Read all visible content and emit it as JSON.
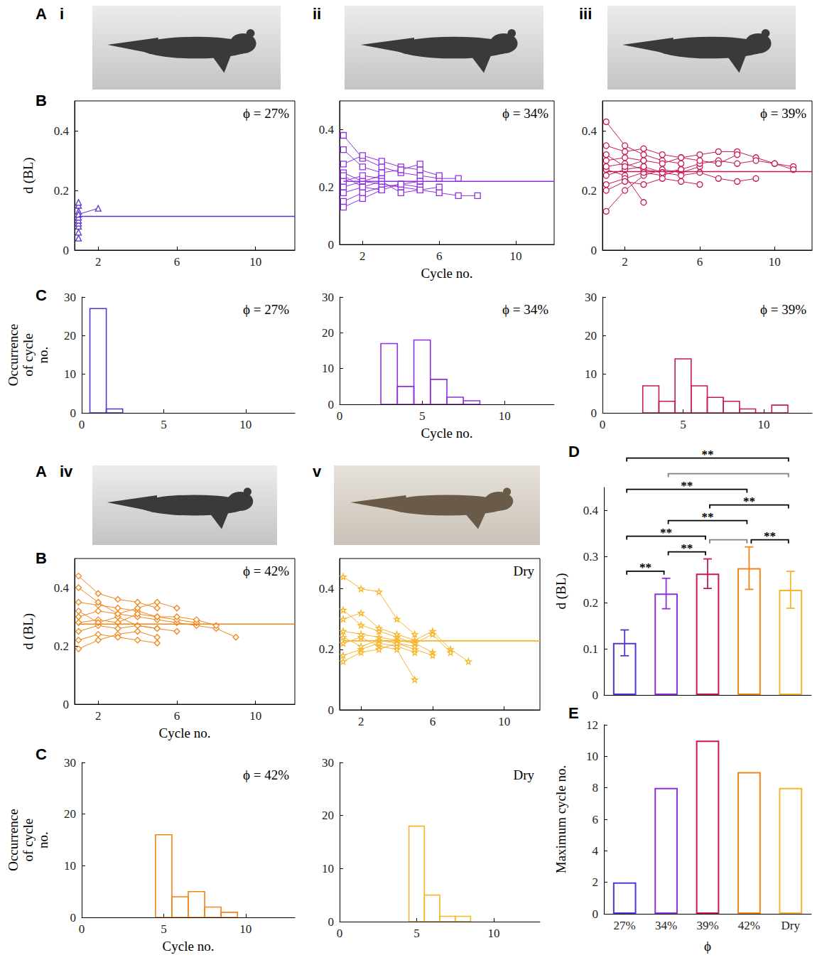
{
  "photos": [
    {
      "panel": "A",
      "label": "i"
    },
    {
      "label": "ii"
    },
    {
      "label": "iii"
    },
    {
      "panel": "A",
      "label": "iv"
    },
    {
      "label": "v"
    }
  ],
  "chart_data": [
    {
      "panel": "B",
      "type": "line",
      "annotation": "ϕ = 27%",
      "y_label": "d (BL)",
      "color": "#5a32d2",
      "marker": "triangle",
      "xlim": [
        0.8,
        12
      ],
      "xticks": [
        2,
        6,
        10
      ],
      "ylim": [
        0,
        0.5
      ],
      "yticks": [
        0,
        0.2,
        0.4
      ],
      "mean": 0.113,
      "series": [
        {
          "x": [
            1
          ],
          "values": [
            0.04
          ]
        },
        {
          "x": [
            1
          ],
          "values": [
            0.06
          ]
        },
        {
          "x": [
            1
          ],
          "values": [
            0.08
          ]
        },
        {
          "x": [
            1
          ],
          "values": [
            0.09
          ]
        },
        {
          "x": [
            1
          ],
          "values": [
            0.1
          ]
        },
        {
          "x": [
            1
          ],
          "values": [
            0.11
          ]
        },
        {
          "x": [
            1
          ],
          "values": [
            0.13
          ]
        },
        {
          "x": [
            1
          ],
          "values": [
            0.15
          ]
        },
        {
          "x": [
            1
          ],
          "values": [
            0.16
          ]
        },
        {
          "x": [
            1,
            2
          ],
          "values": [
            0.12,
            0.14
          ]
        }
      ]
    },
    {
      "type": "line",
      "annotation": "ϕ = 34%",
      "x_label": "Cycle no.",
      "color": "#9030e0",
      "marker": "square",
      "xlim": [
        0.8,
        12
      ],
      "xticks": [
        2,
        6,
        10
      ],
      "ylim": [
        0,
        0.5
      ],
      "yticks": [
        0,
        0.2,
        0.4
      ],
      "mean": 0.22,
      "series": [
        {
          "x": [
            1,
            2,
            3,
            4,
            5,
            6,
            7
          ],
          "values": [
            0.38,
            0.3,
            0.27,
            0.25,
            0.24,
            0.23,
            0.23
          ]
        },
        {
          "x": [
            1,
            2,
            3,
            4,
            5,
            6,
            7,
            8
          ],
          "values": [
            0.25,
            0.22,
            0.21,
            0.2,
            0.19,
            0.18,
            0.17,
            0.17
          ]
        },
        {
          "x": [
            1,
            2,
            3
          ],
          "values": [
            0.2,
            0.22,
            0.24
          ]
        },
        {
          "x": [
            1,
            2,
            3,
            4,
            5
          ],
          "values": [
            0.15,
            0.18,
            0.2,
            0.21,
            0.22
          ]
        },
        {
          "x": [
            1,
            2,
            3,
            4,
            5,
            6
          ],
          "values": [
            0.28,
            0.31,
            0.29,
            0.27,
            0.26,
            0.24
          ]
        },
        {
          "x": [
            1,
            2,
            3
          ],
          "values": [
            0.22,
            0.24,
            0.23
          ]
        },
        {
          "x": [
            1,
            2,
            3,
            4,
            5
          ],
          "values": [
            0.18,
            0.2,
            0.19,
            0.21,
            0.2
          ]
        },
        {
          "x": [
            1,
            2,
            3,
            4,
            5
          ],
          "values": [
            0.33,
            0.27,
            0.25,
            0.26,
            0.28
          ]
        },
        {
          "x": [
            1,
            2,
            3
          ],
          "values": [
            0.13,
            0.16,
            0.19
          ]
        },
        {
          "x": [
            1,
            2,
            3,
            4,
            5,
            6
          ],
          "values": [
            0.24,
            0.2,
            0.22,
            0.18,
            0.19,
            0.2
          ]
        }
      ]
    },
    {
      "type": "line",
      "annotation": "ϕ = 39%",
      "color": "#c8185a",
      "marker": "circle",
      "xlim": [
        0.8,
        12
      ],
      "xticks": [
        2,
        6,
        10
      ],
      "ylim": [
        0,
        0.5
      ],
      "yticks": [
        0,
        0.2,
        0.4
      ],
      "mean": 0.263,
      "series": [
        {
          "x": [
            1,
            2,
            3,
            4,
            5
          ],
          "values": [
            0.43,
            0.35,
            0.32,
            0.3,
            0.29
          ]
        },
        {
          "x": [
            1,
            2,
            3,
            4,
            5,
            6
          ],
          "values": [
            0.13,
            0.2,
            0.25,
            0.27,
            0.26,
            0.28
          ]
        },
        {
          "x": [
            1,
            2,
            3,
            4,
            5,
            6,
            7,
            8,
            9,
            10,
            11
          ],
          "values": [
            0.3,
            0.31,
            0.3,
            0.29,
            0.31,
            0.32,
            0.33,
            0.33,
            0.31,
            0.29,
            0.28
          ]
        },
        {
          "x": [
            1,
            2,
            3
          ],
          "values": [
            0.27,
            0.25,
            0.16
          ]
        },
        {
          "x": [
            1,
            2,
            3,
            4,
            5,
            6,
            7,
            8,
            9
          ],
          "values": [
            0.28,
            0.29,
            0.27,
            0.26,
            0.25,
            0.26,
            0.24,
            0.23,
            0.24
          ]
        },
        {
          "x": [
            1,
            2,
            3,
            4,
            5,
            6,
            7,
            8,
            9,
            10,
            11
          ],
          "values": [
            0.22,
            0.24,
            0.26,
            0.25,
            0.27,
            0.29,
            0.3,
            0.29,
            0.3,
            0.29,
            0.27
          ]
        },
        {
          "x": [
            1,
            2,
            3,
            4,
            5,
            6,
            7,
            8
          ],
          "values": [
            0.35,
            0.33,
            0.34,
            0.32,
            0.31,
            0.3,
            0.29,
            0.32
          ]
        },
        {
          "x": [
            1,
            2,
            3,
            4,
            5
          ],
          "values": [
            0.25,
            0.27,
            0.28,
            0.26,
            0.27
          ]
        },
        {
          "x": [
            1,
            2,
            3
          ],
          "values": [
            0.32,
            0.28,
            0.3
          ]
        },
        {
          "x": [
            1,
            2,
            3,
            4,
            5,
            6
          ],
          "values": [
            0.2,
            0.23,
            0.22,
            0.24,
            0.23,
            0.22
          ]
        }
      ]
    },
    {
      "panel": "C",
      "type": "histogram",
      "annotation": "ϕ = 27%",
      "y_label": "Occurrence of cycle no.",
      "color": "#5a32d2",
      "bins": [
        0.5,
        1.5,
        2.5
      ],
      "values": [
        27,
        1
      ],
      "xlim": [
        0,
        13
      ],
      "xticks": [
        0,
        5,
        10
      ],
      "ylim": [
        0,
        30
      ],
      "yticks": [
        0,
        10,
        20,
        30
      ]
    },
    {
      "type": "histogram",
      "annotation": "ϕ = 34%",
      "x_label": "Cycle no.",
      "color": "#9030e0",
      "bins": [
        2.5,
        3.5,
        4.5,
        5.5,
        6.5,
        7.5,
        8.5
      ],
      "values": [
        17,
        5,
        18,
        7,
        2,
        1
      ],
      "xlim": [
        0,
        13
      ],
      "xticks": [
        0,
        5,
        10
      ],
      "ylim": [
        0,
        30
      ],
      "yticks": [
        0,
        10,
        20,
        30
      ]
    },
    {
      "type": "histogram",
      "annotation": "ϕ = 39%",
      "color": "#c8185a",
      "bins": [
        2.5,
        3.5,
        4.5,
        5.5,
        6.5,
        7.5,
        8.5,
        9.5,
        10.5,
        11.5
      ],
      "values": [
        7,
        3,
        14,
        7,
        4,
        3,
        1,
        0,
        2
      ],
      "xlim": [
        0,
        13
      ],
      "xticks": [
        0,
        5,
        10
      ],
      "ylim": [
        0,
        30
      ],
      "yticks": [
        0,
        10,
        20,
        30
      ]
    },
    {
      "panel": "B",
      "type": "line",
      "annotation": "ϕ = 42%",
      "y_label": "d (BL)",
      "x_label": "Cycle no.",
      "color": "#f08518",
      "marker": "diamond",
      "xlim": [
        0.8,
        12
      ],
      "xticks": [
        2,
        6,
        10
      ],
      "ylim": [
        0,
        0.5
      ],
      "yticks": [
        0,
        0.2,
        0.4
      ],
      "mean": 0.275,
      "series": [
        {
          "x": [
            1,
            2,
            3,
            4,
            5
          ],
          "values": [
            0.44,
            0.38,
            0.36,
            0.35,
            0.33
          ]
        },
        {
          "x": [
            1,
            2,
            3,
            4,
            5
          ],
          "values": [
            0.19,
            0.22,
            0.24,
            0.25,
            0.23
          ]
        },
        {
          "x": [
            1,
            2,
            3,
            4,
            5,
            6,
            7,
            8,
            9
          ],
          "values": [
            0.3,
            0.32,
            0.31,
            0.3,
            0.29,
            0.28,
            0.27,
            0.26,
            0.23
          ]
        },
        {
          "x": [
            1,
            2,
            3,
            4,
            5,
            6,
            7
          ],
          "values": [
            0.35,
            0.34,
            0.33,
            0.32,
            0.3,
            0.29,
            0.28
          ]
        },
        {
          "x": [
            1,
            2,
            3,
            4,
            5,
            6
          ],
          "values": [
            0.25,
            0.27,
            0.26,
            0.27,
            0.26,
            0.25
          ]
        },
        {
          "x": [
            1,
            2,
            3,
            4,
            5,
            6,
            7,
            8
          ],
          "values": [
            0.28,
            0.29,
            0.28,
            0.31,
            0.3,
            0.3,
            0.29,
            0.27
          ]
        },
        {
          "x": [
            1,
            2,
            3,
            4,
            5
          ],
          "values": [
            0.22,
            0.24,
            0.23,
            0.22,
            0.21
          ]
        },
        {
          "x": [
            1,
            2,
            3,
            4,
            5
          ],
          "values": [
            0.32,
            0.28,
            0.3,
            0.27,
            0.26
          ]
        },
        {
          "x": [
            1,
            2,
            3,
            4,
            5,
            6
          ],
          "values": [
            0.4,
            0.35,
            0.31,
            0.33,
            0.35,
            0.33
          ]
        }
      ]
    },
    {
      "type": "line",
      "annotation": "Dry",
      "color": "#f6b52a",
      "marker": "star",
      "xlim": [
        0.8,
        12
      ],
      "xticks": [
        2,
        6,
        10
      ],
      "ylim": [
        0,
        0.5
      ],
      "yticks": [
        0,
        0.2,
        0.4
      ],
      "mean": 0.228,
      "series": [
        {
          "x": [
            1,
            2,
            3,
            4,
            5
          ],
          "values": [
            0.44,
            0.4,
            0.39,
            0.3,
            0.25
          ]
        },
        {
          "x": [
            1,
            2,
            3,
            4,
            5,
            6
          ],
          "values": [
            0.33,
            0.28,
            0.26,
            0.24,
            0.22,
            0.19
          ]
        },
        {
          "x": [
            1,
            2,
            3,
            4,
            5,
            6,
            7,
            8
          ],
          "values": [
            0.3,
            0.32,
            0.27,
            0.25,
            0.23,
            0.26,
            0.2,
            0.16
          ]
        },
        {
          "x": [
            1,
            2,
            3,
            4,
            5
          ],
          "values": [
            0.22,
            0.24,
            0.21,
            0.2,
            0.1
          ]
        },
        {
          "x": [
            1,
            2,
            3,
            4,
            5
          ],
          "values": [
            0.18,
            0.2,
            0.22,
            0.21,
            0.19
          ]
        },
        {
          "x": [
            1,
            2,
            3,
            4,
            5,
            6,
            7
          ],
          "values": [
            0.26,
            0.25,
            0.24,
            0.23,
            0.22,
            0.25,
            0.19
          ]
        },
        {
          "x": [
            1,
            2,
            3,
            4,
            5,
            6
          ],
          "values": [
            0.24,
            0.21,
            0.23,
            0.22,
            0.2,
            0.18
          ]
        },
        {
          "x": [
            1,
            2,
            3,
            4,
            5
          ],
          "values": [
            0.16,
            0.19,
            0.2,
            0.22,
            0.21
          ]
        }
      ]
    },
    {
      "panel": "C",
      "type": "histogram",
      "annotation": "ϕ = 42%",
      "y_label": "Occurrence of cycle no.",
      "x_label": "Cycle no.",
      "color": "#f08518",
      "bins": [
        4.5,
        5.5,
        6.5,
        7.5,
        8.5,
        9.5
      ],
      "values": [
        16,
        4,
        5,
        2,
        1
      ],
      "xlim": [
        0,
        13
      ],
      "xticks": [
        0,
        5,
        10
      ],
      "ylim": [
        0,
        30
      ],
      "yticks": [
        0,
        10,
        20,
        30
      ]
    },
    {
      "type": "histogram",
      "annotation": "Dry",
      "color": "#f6b52a",
      "bins": [
        4.5,
        5.5,
        6.5,
        7.5,
        8.5
      ],
      "values": [
        18,
        5,
        1,
        1
      ],
      "xlim": [
        0,
        13
      ],
      "xticks": [
        0,
        5,
        10
      ],
      "ylim": [
        0,
        30
      ],
      "yticks": [
        0,
        10,
        20,
        30
      ]
    },
    {
      "panel": "D",
      "type": "bar",
      "y_label": "d (BL)",
      "tick_labels": "y",
      "categories": [
        "27%",
        "34%",
        "39%",
        "42%",
        "Dry"
      ],
      "values": [
        0.113,
        0.22,
        0.263,
        0.275,
        0.228
      ],
      "errors": [
        0.028,
        0.033,
        0.032,
        0.046,
        0.04
      ],
      "colors": [
        "#5a32d2",
        "#9030e0",
        "#c8185a",
        "#f08518",
        "#f6b52a"
      ],
      "ylim": [
        0,
        0.45
      ],
      "yticks": [
        0,
        0.1,
        0.2,
        0.3,
        0.4
      ],
      "comparisons": [
        {
          "pair": [
            "27%",
            "34%"
          ],
          "label": "**",
          "color": "#000000"
        },
        {
          "pair": [
            "34%",
            "39%"
          ],
          "label": "**",
          "color": "#000000"
        },
        {
          "pair": [
            "39%",
            "42%"
          ],
          "color": "#808080"
        },
        {
          "pair": [
            "42%",
            "Dry"
          ],
          "label": "**",
          "color": "#000000"
        },
        {
          "pair": [
            "27%",
            "39%"
          ],
          "label": "**",
          "color": "#000000"
        },
        {
          "pair": [
            "34%",
            "42%"
          ],
          "label": "**",
          "color": "#000000"
        },
        {
          "pair": [
            "39%",
            "Dry"
          ],
          "label": "**",
          "color": "#000000"
        },
        {
          "pair": [
            "27%",
            "42%"
          ],
          "label": "**",
          "color": "#000000"
        },
        {
          "pair": [
            "34%",
            "Dry"
          ],
          "color": "#808080"
        },
        {
          "pair": [
            "27%",
            "Dry"
          ],
          "label": "**",
          "color": "#000000"
        }
      ]
    },
    {
      "panel": "E",
      "type": "bar",
      "y_label": "Maximum cycle no.",
      "x_label": "ϕ",
      "categories": [
        "27%",
        "34%",
        "39%",
        "42%",
        "Dry"
      ],
      "values": [
        2,
        8,
        11,
        9,
        8
      ],
      "colors": [
        "#5a32d2",
        "#9030e0",
        "#c8185a",
        "#f08518",
        "#f6b52a"
      ],
      "ylim": [
        0,
        12
      ],
      "yticks": [
        0,
        2,
        4,
        6,
        8,
        10,
        12
      ]
    }
  ]
}
